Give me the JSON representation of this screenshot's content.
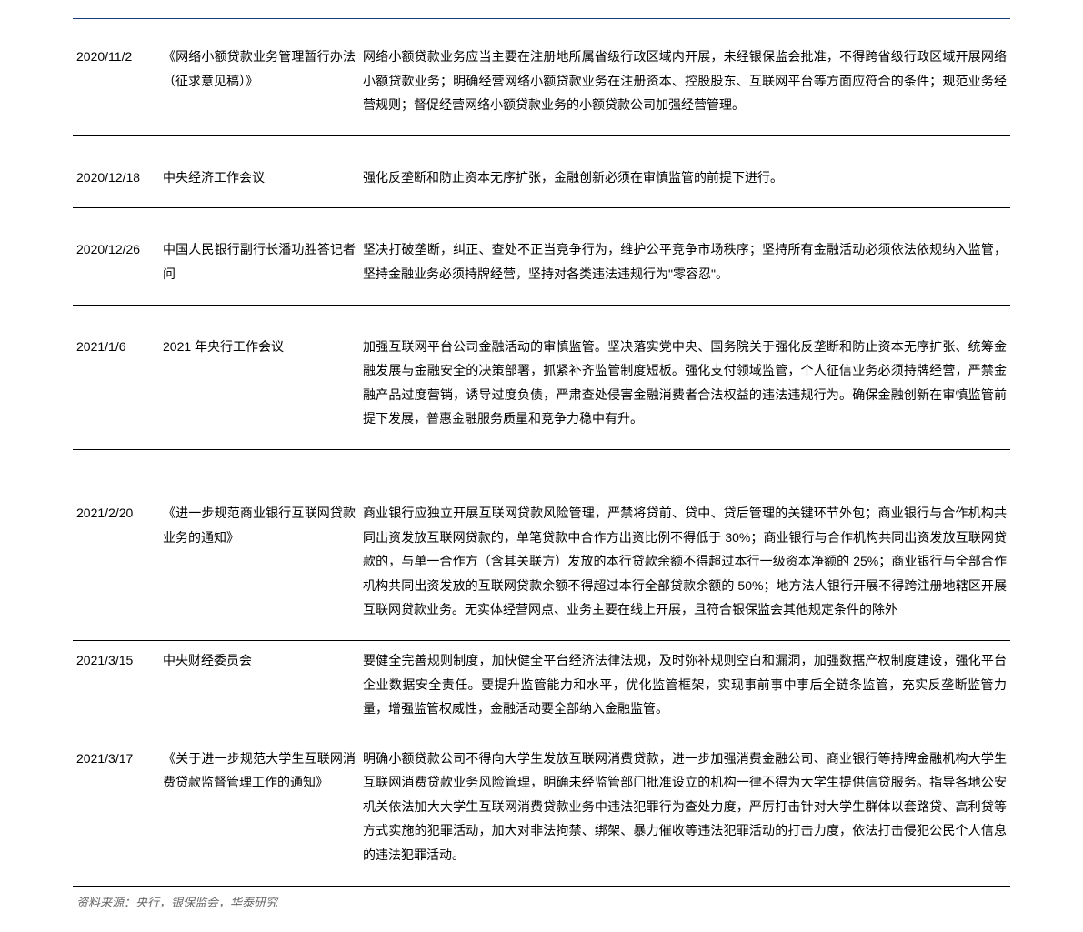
{
  "rows": [
    {
      "date": "2020/11/2",
      "title": "《网络小额贷款业务管理暂行办法（征求意见稿）》",
      "content": "网络小额贷款业务应当主要在注册地所属省级行政区域内开展，未经银保监会批准，不得跨省级行政区域开展网络小额贷款业务；明确经营网络小额贷款业务在注册资本、控股股东、互联网平台等方面应符合的条件；规范业务经营规则；督促经营网络小额贷款业务的小额贷款公司加强经营管理。"
    },
    {
      "date": "2020/12/18",
      "title": "中央经济工作会议",
      "content": "强化反垄断和防止资本无序扩张，金融创新必须在审慎监管的前提下进行。"
    },
    {
      "date": "2020/12/26",
      "title": "中国人民银行副行长潘功胜答记者问",
      "content": "坚决打破垄断，纠正、查处不正当竞争行为，维护公平竞争市场秩序；坚持所有金融活动必须依法依规纳入监管，坚持金融业务必须持牌经营，坚持对各类违法违规行为\"零容忍\"。"
    },
    {
      "date": "2021/1/6",
      "title": "2021 年央行工作会议",
      "content": "加强互联网平台公司金融活动的审慎监管。坚决落实党中央、国务院关于强化反垄断和防止资本无序扩张、统筹金融发展与金融安全的决策部署，抓紧补齐监管制度短板。强化支付领域监管，个人征信业务必须持牌经营，严禁金融产品过度营销，诱导过度负债，严肃查处侵害金融消费者合法权益的违法违规行为。确保金融创新在审慎监管前提下发展，普惠金融服务质量和竞争力稳中有升。"
    },
    {
      "date": "2021/2/20",
      "title": "《进一步规范商业银行互联网贷款业务的通知》",
      "content": "商业银行应独立开展互联网贷款风险管理，严禁将贷前、贷中、贷后管理的关键环节外包；商业银行与合作机构共同出资发放互联网贷款的，单笔贷款中合作方出资比例不得低于 30%；商业银行与合作机构共同出资发放互联网贷款的，与单一合作方（含其关联方）发放的本行贷款余额不得超过本行一级资本净额的 25%；商业银行与全部合作机构共同出资发放的互联网贷款余额不得超过本行全部贷款余额的 50%；地方法人银行开展不得跨注册地辖区开展互联网贷款业务。无实体经营网点、业务主要在线上开展，且符合银保监会其他规定条件的除外"
    },
    {
      "date": "2021/3/15",
      "title": "中央财经委员会",
      "content": "要健全完善规则制度，加快健全平台经济法律法规，及时弥补规则空白和漏洞，加强数据产权制度建设，强化平台企业数据安全责任。要提升监管能力和水平，优化监管框架，实现事前事中事后全链条监管，充实反垄断监管力量，增强监管权威性，金融活动要全部纳入金融监管。"
    },
    {
      "date": "2021/3/17",
      "title": "《关于进一步规范大学生互联网消费贷款监督管理工作的通知》",
      "content": "明确小额贷款公司不得向大学生发放互联网消费贷款，进一步加强消费金融公司、商业银行等持牌金融机构大学生互联网消费贷款业务风险管理，明确未经监管部门批准设立的机构一律不得为大学生提供信贷服务。指导各地公安机关依法加大大学生互联网消费贷款业务中违法犯罪行为查处力度，严厉打击针对大学生群体以套路贷、高利贷等方式实施的犯罪活动，加大对非法拘禁、绑架、暴力催收等违法犯罪活动的打击力度，依法打击侵犯公民个人信息的违法犯罪活动。"
    }
  ],
  "source": "资料来源：央行，银保监会，华泰研究"
}
